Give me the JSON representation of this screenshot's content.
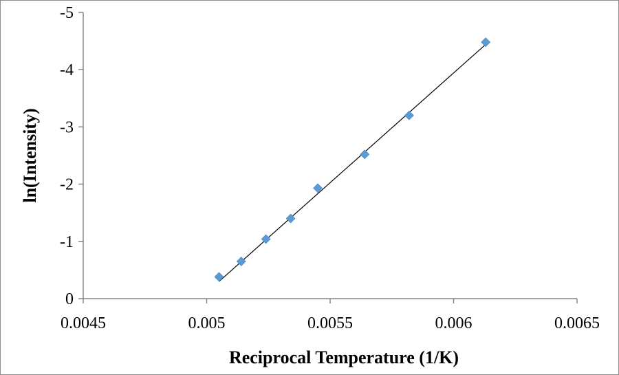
{
  "chart_data": {
    "type": "scatter",
    "title": "",
    "xlabel": "Reciprocal Temperature  (1/K)",
    "ylabel": "ln(Intensity)",
    "xlim": [
      0.0045,
      0.0065
    ],
    "ylim": [
      0,
      -5
    ],
    "y_axis_reversed": true,
    "grid": false,
    "legend": "none",
    "x_ticks": [
      {
        "value": 0.0045,
        "label": "0.0045"
      },
      {
        "value": 0.005,
        "label": "0.005"
      },
      {
        "value": 0.0055,
        "label": "0.0055"
      },
      {
        "value": 0.006,
        "label": "0.006"
      },
      {
        "value": 0.0065,
        "label": "0.0065"
      }
    ],
    "y_ticks": [
      {
        "value": 0,
        "label": "0"
      },
      {
        "value": -1,
        "label": "-1"
      },
      {
        "value": -2,
        "label": "-2"
      },
      {
        "value": -3,
        "label": "-3"
      },
      {
        "value": -4,
        "label": "-4"
      },
      {
        "value": -5,
        "label": "-5"
      }
    ],
    "series": [
      {
        "marker": "diamond",
        "color": "#5b9bd5",
        "points": [
          {
            "x": 0.00505,
            "y": -0.38
          },
          {
            "x": 0.00514,
            "y": -0.65
          },
          {
            "x": 0.00524,
            "y": -1.04
          },
          {
            "x": 0.00534,
            "y": -1.4
          },
          {
            "x": 0.00545,
            "y": -1.93
          },
          {
            "x": 0.00564,
            "y": -2.52
          },
          {
            "x": 0.00582,
            "y": -3.2
          },
          {
            "x": 0.00613,
            "y": -4.48
          }
        ]
      }
    ],
    "trendline": {
      "type": "linear",
      "color": "#000000",
      "from": {
        "x": 0.00505,
        "y": -0.3
      },
      "to": {
        "x": 0.00613,
        "y": -4.44
      }
    }
  }
}
